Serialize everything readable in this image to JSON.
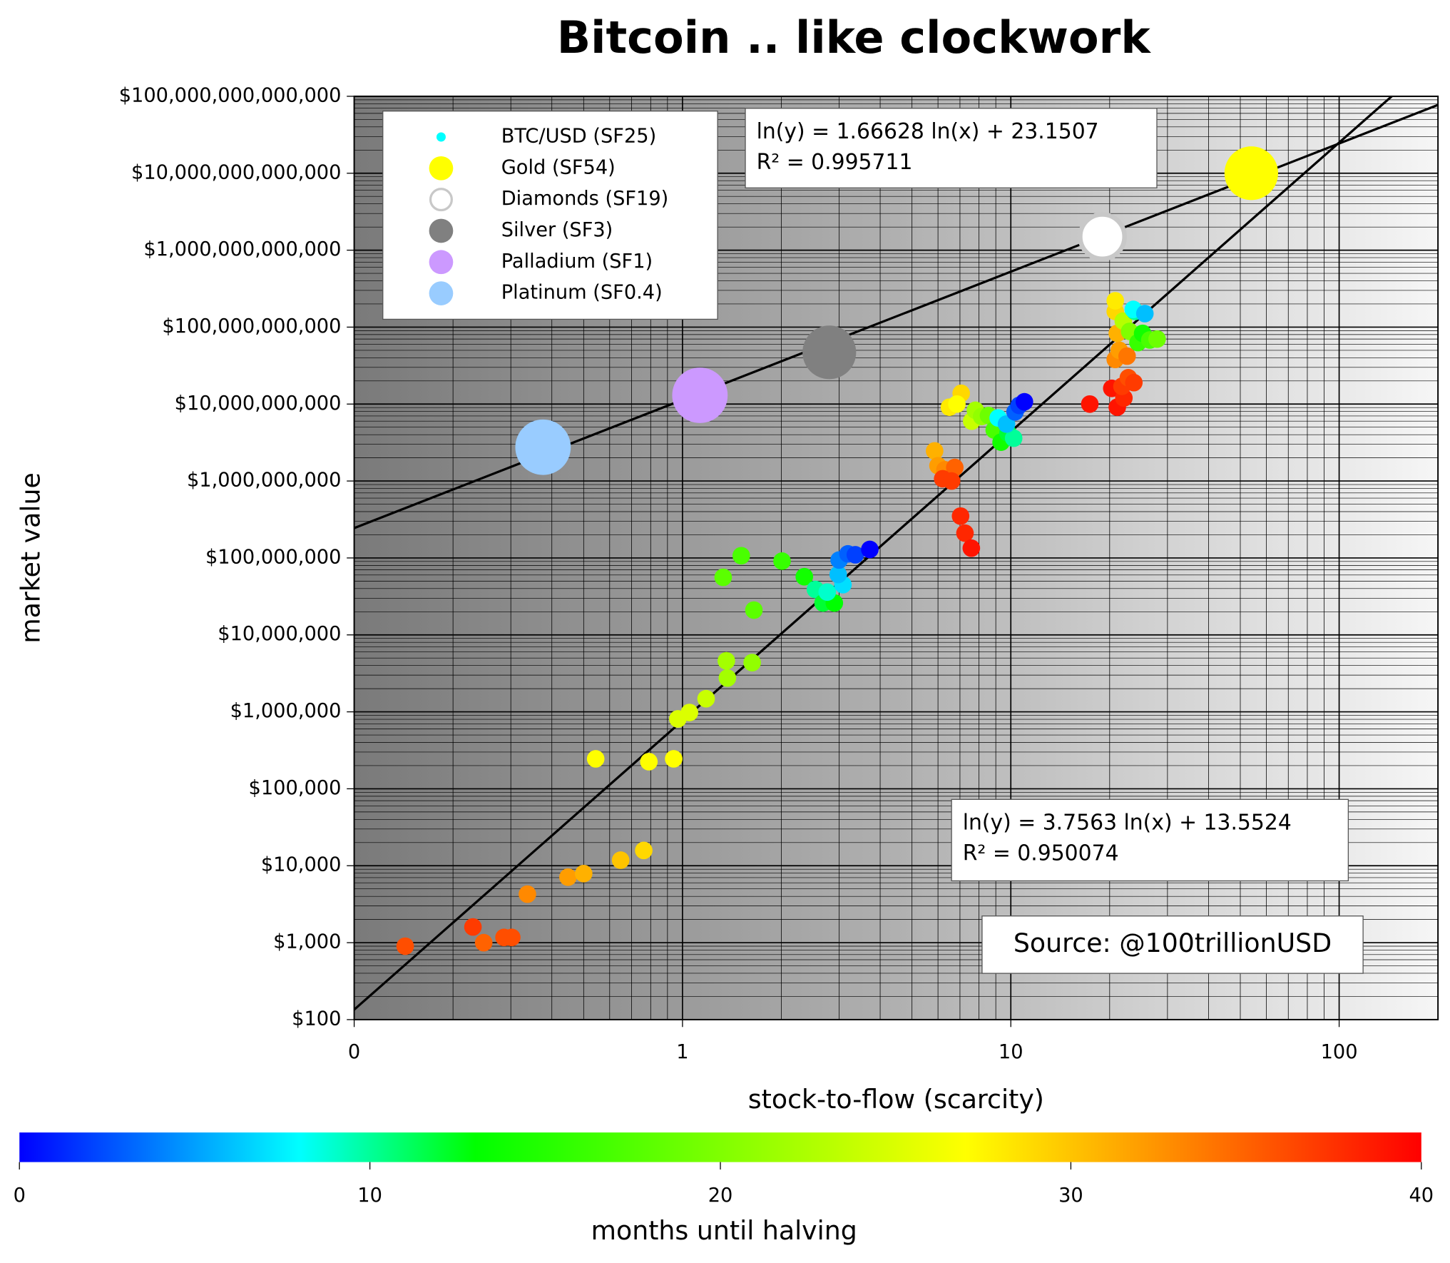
{
  "chart_data": {
    "type": "scatter",
    "title": "Bitcoin .. like clockwork",
    "x_label": "stock-to-flow (scarcity)",
    "y_label": "market value",
    "xscale": "log",
    "yscale": "log",
    "xlim": [
      0.1,
      200
    ],
    "ylim": [
      100,
      100000000000000
    ],
    "xticks": [
      {
        "value": 0.1,
        "label": "0"
      },
      1,
      10,
      100
    ],
    "yticks": [
      {
        "value": 100,
        "label": "$100"
      },
      {
        "value": 1000,
        "label": "$1,000"
      },
      {
        "value": 10000,
        "label": "$10,000"
      },
      {
        "value": 100000,
        "label": "$100,000"
      },
      {
        "value": 1000000,
        "label": "$1,000,000"
      },
      {
        "value": 10000000,
        "label": "$10,000,000"
      },
      {
        "value": 100000000,
        "label": "$100,000,000"
      },
      {
        "value": 1000000000,
        "label": "$1,000,000,000"
      },
      {
        "value": 10000000000,
        "label": "$10,000,000,000"
      },
      {
        "value": 100000000000,
        "label": "$100,000,000,000"
      },
      {
        "value": 1000000000000,
        "label": "$1,000,000,000,000"
      },
      {
        "value": 10000000000000,
        "label": "$10,000,000,000,000"
      },
      {
        "value": 100000000000000,
        "label": "$100,000,000,000,000"
      }
    ],
    "grid": true,
    "legend": "upper left",
    "series": [
      {
        "name": "BTC/USD (SF25)",
        "color": "#00ffff",
        "x": [
          0.143,
          0.23,
          0.248,
          0.286,
          0.302,
          0.337,
          0.448,
          0.5,
          0.648,
          0.762,
          0.544,
          0.79,
          0.94,
          0.968,
          1.05,
          1.18,
          1.36,
          1.37,
          1.63,
          1.33,
          1.51,
          1.65,
          2.01,
          2.35,
          2.54,
          2.68,
          2.9,
          2.76,
          3.08,
          2.98,
          3.0,
          3.19,
          3.36,
          3.72,
          5.86,
          6.0,
          6.3,
          6.75,
          6.2,
          6.6,
          7.03,
          7.25,
          7.58,
          7.06,
          6.5,
          6.85,
          7.6,
          7.8,
          8.15,
          8.55,
          8.9,
          9.34,
          9.8,
          10.2,
          9.15,
          9.7,
          10.3,
          10.6,
          11.0,
          17.4,
          20.3,
          21.1,
          22.1,
          21.8,
          22.8,
          23.7,
          20.8,
          21.4,
          22.6,
          21.1,
          20.8,
          20.8,
          22,
          23,
          24.4,
          25.2,
          26.5,
          27.9,
          23.9,
          23.6,
          25.6
        ],
        "values": [
          900,
          1600,
          1000,
          1170,
          1170,
          4270,
          7100,
          7900,
          11800,
          15800,
          245000,
          225000,
          245000,
          810000,
          980000,
          1480000,
          4600000,
          2750000,
          4360000,
          56000000,
          107000000,
          21000000,
          91000000,
          57000000,
          39000000,
          26000000,
          26000000,
          36000000,
          45000000,
          61000000,
          94000000,
          113000000,
          110000000,
          129000000,
          2460000000,
          1580000000,
          1400000000,
          1500000000,
          1070000000,
          1000000000,
          350000000,
          210000000,
          134000000,
          13800000000,
          9100000000,
          10000000000,
          6000000000,
          8300000000,
          6900000000,
          7100000000,
          4600000000,
          3200000000,
          4200000000,
          3600000000,
          6600000000,
          5500000000,
          7900000000,
          9600000000,
          10700000000,
          10000000000,
          16000000000,
          9100000000,
          12000000000,
          17000000000,
          22000000000,
          19000000000,
          38000000000,
          50000000000,
          42000000000,
          83000000000,
          160000000000,
          220000000000,
          120000000000,
          88000000000,
          63000000000,
          83000000000,
          68000000000,
          70000000000,
          160000000000,
          170000000000,
          150000000000
        ],
        "months": [
          36,
          37,
          35,
          36,
          36,
          33,
          32,
          31,
          30,
          29,
          27,
          27,
          27,
          25,
          25,
          24,
          22,
          22,
          21,
          18,
          17,
          18,
          16,
          14,
          10,
          12,
          13,
          9,
          7,
          6,
          4,
          3,
          2,
          0,
          31,
          32,
          33,
          35,
          37,
          37,
          38,
          38,
          39,
          29,
          28,
          27,
          24,
          22,
          21,
          19,
          17,
          14,
          12,
          10,
          8,
          6,
          3,
          2,
          0,
          39,
          39,
          39,
          38,
          37,
          36,
          37,
          33,
          32,
          34,
          31,
          29,
          28,
          23,
          20,
          16,
          14,
          17,
          19,
          10,
          8,
          6
        ]
      },
      {
        "name": "Gold (SF54)",
        "color": "#ffff00",
        "x": [
          54
        ],
        "values": [
          10000000000000
        ]
      },
      {
        "name": "Diamonds (SF19)",
        "color": "#ffffff",
        "x": [
          19
        ],
        "values": [
          1500000000000
        ]
      },
      {
        "name": "Silver (SF3)",
        "color": "#808080",
        "x": [
          2.8
        ],
        "values": [
          47000000000
        ]
      },
      {
        "name": "Palladium (SF1)",
        "color": "#cc99ff",
        "x": [
          1.13
        ],
        "values": [
          13000000000
        ]
      },
      {
        "name": "Platinum (SF0.4)",
        "color": "#99ccff",
        "x": [
          0.376
        ],
        "values": [
          2750000000
        ]
      }
    ],
    "fits": [
      {
        "lines": [
          "ln(y) = 1.66628 ln(x) + 23.1507",
          "R² = 0.995711"
        ],
        "slope": 1.66628,
        "intercept": 23.1507
      },
      {
        "lines": [
          "ln(y) = 3.7563 ln(x) + 13.5524",
          "R² = 0.950074"
        ],
        "slope": 3.7563,
        "intercept": 13.5524
      }
    ],
    "source": "Source: @100trillionUSD",
    "colorbar": {
      "label": "months until halving",
      "lim": [
        0,
        40
      ],
      "ticks": [
        0,
        10,
        20,
        30,
        40
      ],
      "colormap": [
        {
          "value": 0,
          "color": "#0000ff"
        },
        {
          "value": 8,
          "color": "#00ffff"
        },
        {
          "value": 13,
          "color": "#00ff00"
        },
        {
          "value": 27,
          "color": "#ffff00"
        },
        {
          "value": 40,
          "color": "#ff0000"
        }
      ]
    }
  }
}
